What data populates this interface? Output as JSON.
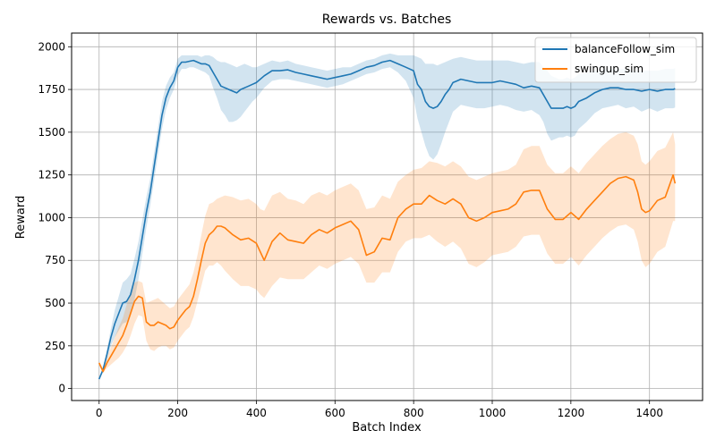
{
  "chart_data": {
    "type": "line",
    "title": "Rewards vs. Batches",
    "xlabel": "Batch Index",
    "ylabel": "Reward",
    "xlim": [
      -70,
      1535
    ],
    "ylim": [
      -70,
      2080
    ],
    "xticks": [
      0,
      200,
      400,
      600,
      800,
      1000,
      1200,
      1400
    ],
    "yticks": [
      0,
      250,
      500,
      750,
      1000,
      1250,
      1500,
      1750,
      2000
    ],
    "grid": true,
    "legend_position": "top-right",
    "series": [
      {
        "name": "balanceFollow_sim",
        "color": "#1f77b4",
        "band_color": "#1f77b4",
        "x": [
          0,
          10,
          20,
          30,
          40,
          50,
          60,
          70,
          80,
          90,
          100,
          110,
          120,
          130,
          140,
          150,
          160,
          170,
          180,
          190,
          200,
          210,
          220,
          230,
          240,
          250,
          260,
          270,
          280,
          290,
          300,
          310,
          320,
          330,
          340,
          350,
          360,
          370,
          380,
          390,
          400,
          420,
          440,
          460,
          480,
          500,
          520,
          540,
          560,
          580,
          600,
          620,
          640,
          660,
          680,
          700,
          720,
          740,
          760,
          780,
          800,
          810,
          820,
          830,
          840,
          850,
          860,
          870,
          880,
          890,
          900,
          920,
          940,
          960,
          980,
          1000,
          1020,
          1040,
          1060,
          1080,
          1100,
          1120,
          1130,
          1140,
          1150,
          1160,
          1170,
          1180,
          1190,
          1200,
          1210,
          1220,
          1240,
          1260,
          1280,
          1300,
          1320,
          1340,
          1360,
          1380,
          1400,
          1420,
          1440,
          1460,
          1465
        ],
        "mean": [
          55,
          110,
          200,
          300,
          380,
          440,
          500,
          510,
          550,
          640,
          750,
          890,
          1030,
          1150,
          1300,
          1450,
          1600,
          1700,
          1760,
          1800,
          1880,
          1910,
          1910,
          1915,
          1920,
          1910,
          1900,
          1900,
          1890,
          1850,
          1810,
          1770,
          1760,
          1750,
          1740,
          1730,
          1750,
          1760,
          1770,
          1780,
          1790,
          1830,
          1860,
          1860,
          1865,
          1850,
          1840,
          1830,
          1820,
          1810,
          1820,
          1830,
          1840,
          1860,
          1880,
          1890,
          1910,
          1920,
          1900,
          1880,
          1860,
          1780,
          1750,
          1680,
          1650,
          1640,
          1650,
          1680,
          1720,
          1750,
          1790,
          1810,
          1800,
          1790,
          1790,
          1790,
          1800,
          1790,
          1780,
          1760,
          1770,
          1760,
          1720,
          1680,
          1640,
          1640,
          1640,
          1640,
          1650,
          1640,
          1650,
          1680,
          1700,
          1730,
          1750,
          1760,
          1760,
          1750,
          1750,
          1740,
          1750,
          1740,
          1750,
          1750,
          1755
        ],
        "lower": [
          50,
          95,
          170,
          250,
          300,
          340,
          380,
          390,
          430,
          520,
          640,
          790,
          940,
          1070,
          1220,
          1370,
          1520,
          1630,
          1700,
          1750,
          1830,
          1870,
          1870,
          1880,
          1880,
          1870,
          1860,
          1850,
          1830,
          1760,
          1700,
          1630,
          1600,
          1560,
          1560,
          1570,
          1590,
          1620,
          1650,
          1680,
          1700,
          1760,
          1800,
          1810,
          1810,
          1800,
          1790,
          1780,
          1770,
          1760,
          1770,
          1780,
          1800,
          1820,
          1840,
          1850,
          1870,
          1880,
          1850,
          1800,
          1700,
          1580,
          1500,
          1420,
          1360,
          1340,
          1370,
          1430,
          1500,
          1560,
          1620,
          1660,
          1650,
          1640,
          1640,
          1650,
          1660,
          1650,
          1630,
          1620,
          1630,
          1600,
          1560,
          1490,
          1450,
          1460,
          1470,
          1470,
          1480,
          1470,
          1480,
          1520,
          1560,
          1610,
          1640,
          1650,
          1660,
          1640,
          1650,
          1620,
          1640,
          1620,
          1640,
          1640,
          1645
        ],
        "upper": [
          60,
          125,
          230,
          350,
          460,
          540,
          620,
          640,
          670,
          760,
          860,
          990,
          1120,
          1230,
          1380,
          1530,
          1680,
          1770,
          1820,
          1850,
          1930,
          1950,
          1950,
          1950,
          1950,
          1950,
          1940,
          1950,
          1950,
          1940,
          1920,
          1910,
          1910,
          1900,
          1890,
          1880,
          1890,
          1900,
          1890,
          1880,
          1880,
          1900,
          1920,
          1910,
          1920,
          1900,
          1890,
          1880,
          1870,
          1860,
          1870,
          1880,
          1880,
          1900,
          1920,
          1930,
          1950,
          1960,
          1950,
          1950,
          1950,
          1940,
          1930,
          1900,
          1900,
          1900,
          1890,
          1900,
          1910,
          1920,
          1930,
          1940,
          1930,
          1920,
          1920,
          1920,
          1920,
          1920,
          1910,
          1900,
          1910,
          1910,
          1880,
          1860,
          1830,
          1820,
          1810,
          1810,
          1820,
          1810,
          1820,
          1840,
          1850,
          1860,
          1870,
          1870,
          1870,
          1870,
          1860,
          1860,
          1860,
          1860,
          1870,
          1870,
          1875
        ]
      },
      {
        "name": "swingup_sim",
        "color": "#ff7f0e",
        "band_color": "#ff7f0e",
        "x": [
          0,
          10,
          20,
          30,
          40,
          50,
          60,
          70,
          80,
          90,
          100,
          110,
          120,
          130,
          140,
          150,
          160,
          170,
          180,
          190,
          200,
          210,
          220,
          230,
          240,
          250,
          260,
          270,
          280,
          290,
          300,
          310,
          320,
          340,
          360,
          380,
          400,
          410,
          420,
          440,
          460,
          480,
          500,
          520,
          540,
          560,
          580,
          600,
          620,
          640,
          660,
          680,
          700,
          720,
          740,
          760,
          780,
          800,
          820,
          840,
          860,
          880,
          900,
          920,
          940,
          960,
          980,
          1000,
          1020,
          1040,
          1060,
          1080,
          1100,
          1120,
          1140,
          1160,
          1180,
          1200,
          1220,
          1240,
          1260,
          1280,
          1300,
          1320,
          1340,
          1360,
          1370,
          1380,
          1390,
          1400,
          1420,
          1440,
          1460,
          1465
        ],
        "mean": [
          150,
          100,
          150,
          190,
          230,
          270,
          310,
          370,
          440,
          510,
          540,
          530,
          390,
          370,
          370,
          390,
          380,
          370,
          350,
          360,
          400,
          430,
          460,
          480,
          540,
          640,
          750,
          850,
          900,
          920,
          950,
          950,
          940,
          900,
          870,
          880,
          850,
          800,
          750,
          860,
          910,
          870,
          860,
          850,
          900,
          930,
          910,
          940,
          960,
          980,
          930,
          780,
          800,
          880,
          870,
          1000,
          1050,
          1080,
          1080,
          1130,
          1100,
          1080,
          1110,
          1080,
          1000,
          980,
          1000,
          1030,
          1040,
          1050,
          1080,
          1150,
          1160,
          1160,
          1050,
          990,
          990,
          1030,
          990,
          1050,
          1100,
          1150,
          1200,
          1230,
          1240,
          1220,
          1150,
          1050,
          1030,
          1040,
          1100,
          1120,
          1250,
          1200
        ],
        "lower": [
          140,
          90,
          120,
          140,
          160,
          180,
          210,
          250,
          310,
          380,
          430,
          420,
          280,
          230,
          220,
          240,
          250,
          250,
          230,
          240,
          280,
          310,
          340,
          360,
          420,
          510,
          600,
          690,
          720,
          720,
          740,
          720,
          690,
          640,
          600,
          600,
          580,
          550,
          530,
          600,
          650,
          640,
          640,
          640,
          680,
          720,
          700,
          730,
          750,
          770,
          730,
          620,
          620,
          680,
          680,
          800,
          860,
          880,
          880,
          900,
          860,
          830,
          860,
          820,
          730,
          710,
          740,
          780,
          790,
          800,
          830,
          890,
          900,
          900,
          790,
          730,
          730,
          770,
          720,
          780,
          830,
          880,
          920,
          950,
          960,
          930,
          860,
          750,
          710,
          730,
          800,
          830,
          980,
          980
        ],
        "upper": [
          160,
          120,
          180,
          240,
          300,
          360,
          410,
          490,
          560,
          620,
          630,
          620,
          500,
          510,
          520,
          530,
          510,
          490,
          470,
          480,
          520,
          550,
          580,
          610,
          680,
          780,
          900,
          1010,
          1080,
          1090,
          1110,
          1120,
          1130,
          1120,
          1100,
          1110,
          1080,
          1050,
          1040,
          1130,
          1150,
          1110,
          1100,
          1080,
          1130,
          1150,
          1130,
          1160,
          1180,
          1200,
          1160,
          1050,
          1060,
          1130,
          1110,
          1210,
          1250,
          1280,
          1290,
          1330,
          1320,
          1300,
          1330,
          1300,
          1240,
          1220,
          1240,
          1260,
          1270,
          1280,
          1310,
          1400,
          1420,
          1420,
          1310,
          1260,
          1260,
          1300,
          1260,
          1320,
          1370,
          1420,
          1460,
          1490,
          1500,
          1480,
          1430,
          1330,
          1310,
          1330,
          1390,
          1410,
          1500,
          1430
        ]
      }
    ]
  }
}
